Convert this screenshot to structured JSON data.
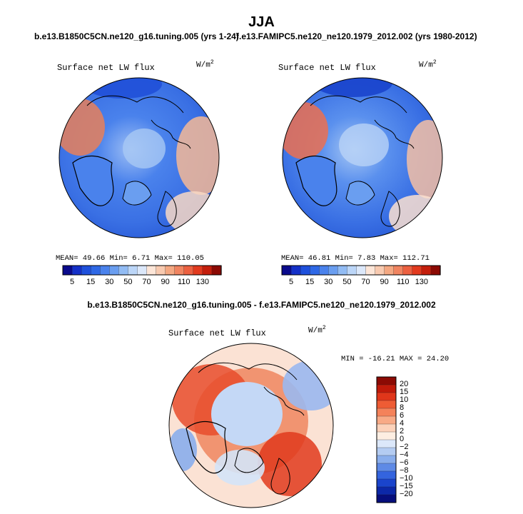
{
  "figure": {
    "season": "JJA",
    "left_case": "b.e13.B1850C5CN.ne120_g16.tuning.005 (yrs 1-24)",
    "right_case": "f.e13.FAMIPC5.ne120_ne120.1979_2012.002 (yrs 1980-2012)",
    "diff_title": "b.e13.B1850C5CN.ne120_g16.tuning.005 - f.e13.FAMIPC5.ne120_ne120.1979_2012.002"
  },
  "panels": [
    {
      "label": "Surface net LW flux",
      "units": "W/m",
      "units_exp": "2",
      "stats": "MEAN=  49.66  Min=   6.71  Max= 110.05"
    },
    {
      "label": "Surface net LW flux",
      "units": "W/m",
      "units_exp": "2",
      "stats": "MEAN=  46.81  Min=   7.83  Max= 112.71"
    },
    {
      "label": "Surface net LW flux",
      "units": "W/m",
      "units_exp": "2",
      "stats": "MIN = -16.21  MAX =  24.20"
    }
  ],
  "colorbar_top": {
    "colors": [
      "#0a0a8c",
      "#1430c8",
      "#1e50dc",
      "#2e68e6",
      "#4a82ec",
      "#6a9ef0",
      "#92bcf4",
      "#bcd6f8",
      "#dce8fa",
      "#fde6d8",
      "#f8cab0",
      "#f4a882",
      "#f08460",
      "#ec6040",
      "#e23a1e",
      "#c41e0c",
      "#8c0a04"
    ],
    "labels": [
      "5",
      "15",
      "30",
      "50",
      "70",
      "90",
      "110",
      "130"
    ]
  },
  "colorbar_diff": {
    "colors": [
      "#8c0a04",
      "#c01a0a",
      "#e0361a",
      "#ee5c34",
      "#f4825a",
      "#f8aa86",
      "#fcd2ba",
      "#fdeee2",
      "#dce8fa",
      "#b4ccf2",
      "#8aaeec",
      "#5e8ae6",
      "#3464de",
      "#1a44cc",
      "#0c28a8",
      "#060e7c"
    ],
    "labels": [
      "20",
      "15",
      "10",
      "8",
      "6",
      "4",
      "2",
      "0",
      "−2",
      "−4",
      "−6",
      "−8",
      "−10",
      "−15",
      "−20"
    ]
  }
}
